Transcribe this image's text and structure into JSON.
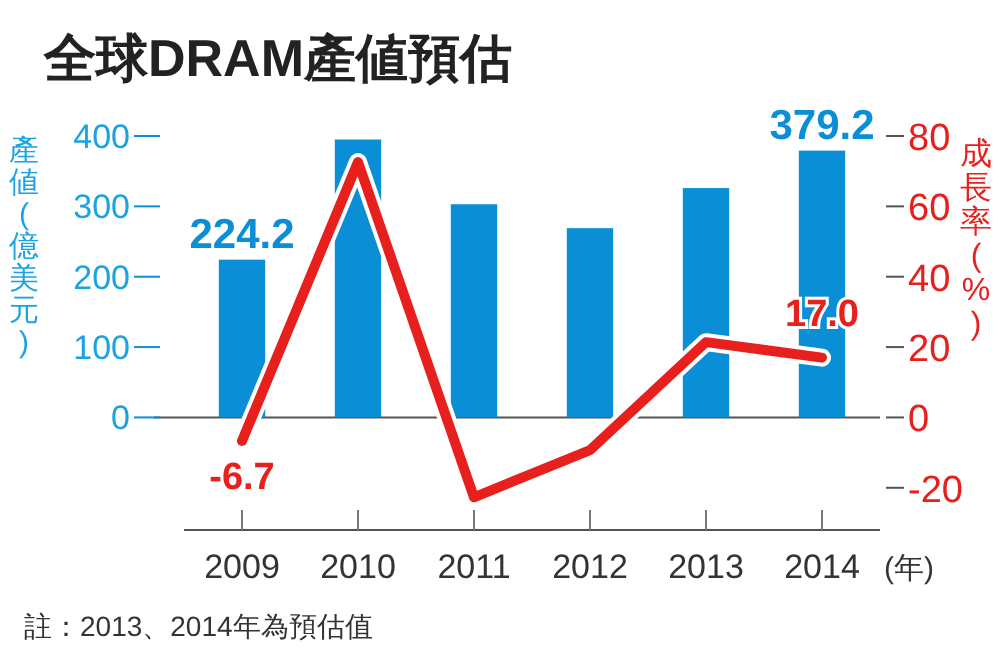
{
  "chart_data": {
    "type": "bar",
    "title": "全球DRAM產値預估",
    "ylabel": "產値(億美元)",
    "y2label": "成長率(%)",
    "xlabel": "(年)",
    "categories": [
      "2009",
      "2010",
      "2011",
      "2012",
      "2013",
      "2014"
    ],
    "series": [
      {
        "color": "#0a8fd6",
        "values": [
          224.2,
          395,
          303,
          269,
          326,
          379.2
        ],
        "value_labels": [
          "224.2",
          null,
          null,
          null,
          null,
          "379.2"
        ]
      },
      {
        "type": "line",
        "axis": "y2",
        "color": "#e8201d",
        "values": [
          -6.7,
          72.6,
          -22.7,
          -9.3,
          21.4,
          17.0
        ],
        "value_labels": [
          "-6.7",
          null,
          null,
          null,
          null,
          "17.0"
        ]
      }
    ],
    "ylim": [
      -160,
      400
    ],
    "yticks": [
      0,
      100,
      200,
      300,
      400
    ],
    "y2lim": [
      -32,
      80
    ],
    "y2ticks": [
      -20,
      0,
      20,
      40,
      60,
      80
    ],
    "annotations": [
      "註：2013、2014年為預估值"
    ]
  }
}
